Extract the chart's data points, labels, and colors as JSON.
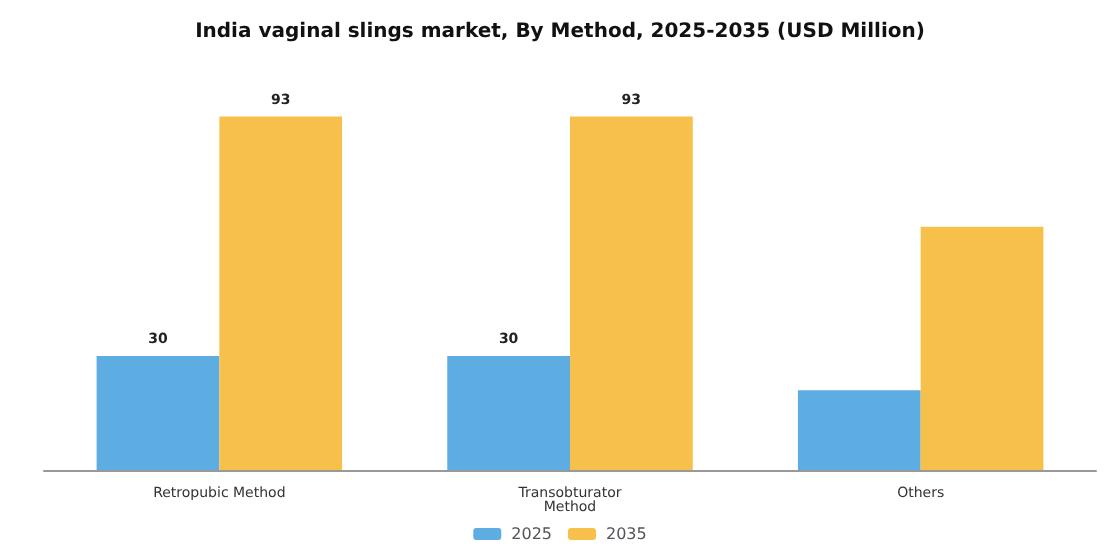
{
  "chart_data": {
    "type": "bar",
    "title": "India vaginal slings market, By Method, 2025-2035 (USD Million)",
    "categories": [
      "Retropubic Method",
      "Transobturator\nMethod",
      "Others"
    ],
    "series": [
      {
        "name": "2025",
        "color": "#5dade2",
        "values": [
          30,
          30,
          21
        ],
        "value_labels": [
          "30",
          "30",
          null
        ]
      },
      {
        "name": "2035",
        "color": "#f7c04a",
        "values": [
          93,
          93,
          64
        ],
        "value_labels": [
          "93",
          "93",
          null
        ]
      }
    ],
    "legend": "bottom"
  }
}
